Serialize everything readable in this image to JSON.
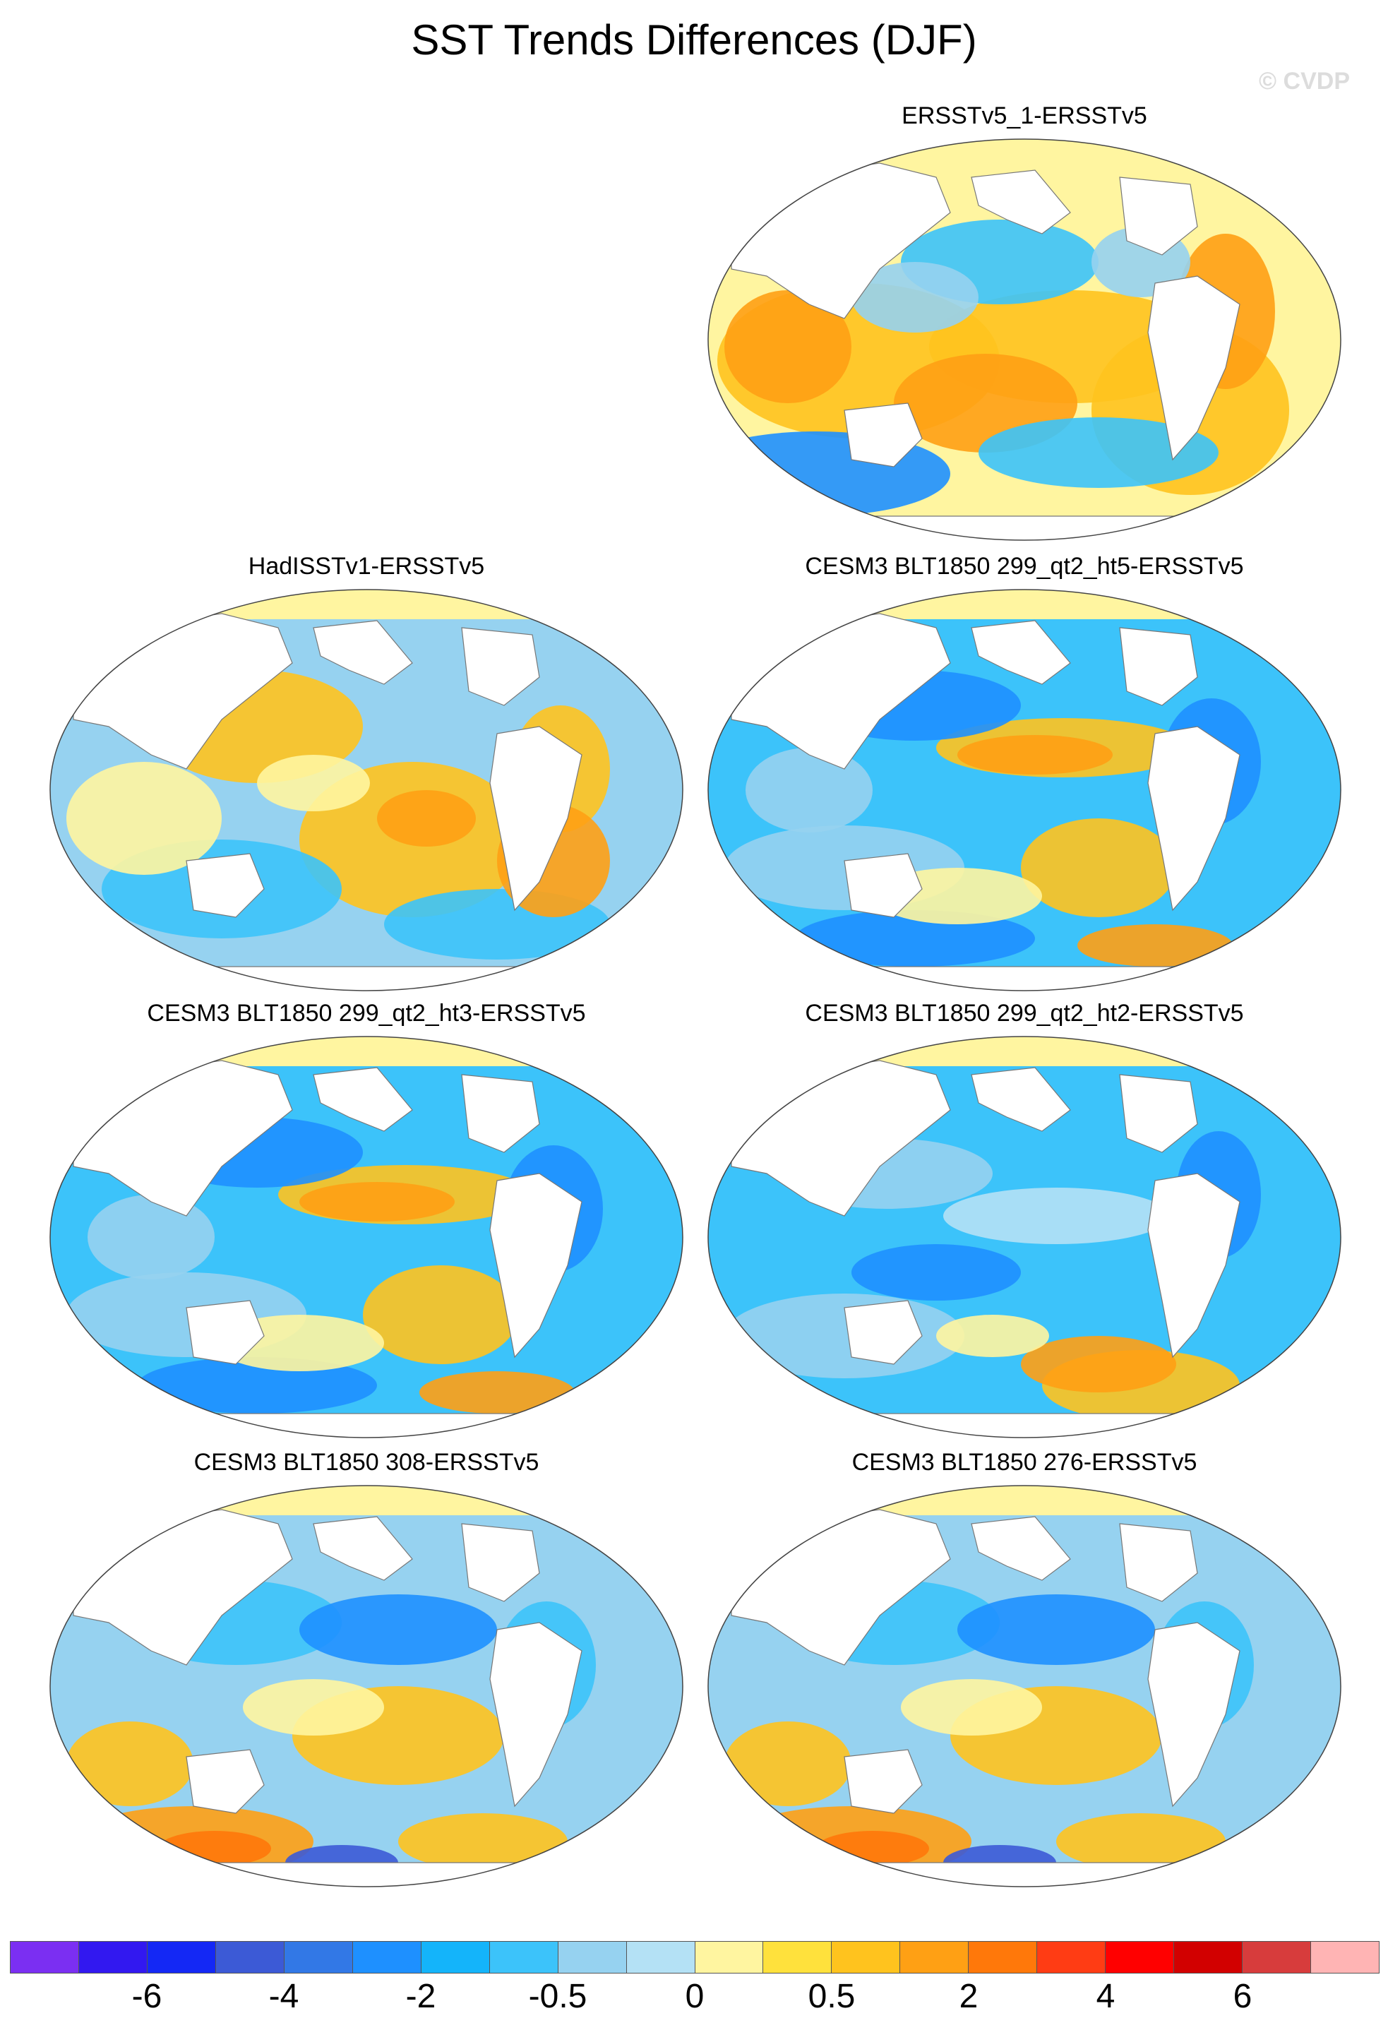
{
  "title": "SST Trends Differences (DJF)",
  "credit": "© CVDP",
  "panels": [
    {
      "title": "ERSSTv5_1-ERSSTv5",
      "pattern": "warm"
    },
    {
      "title": "HadISSTv1-ERSSTv5",
      "pattern": "mixed-warm"
    },
    {
      "title": "CESM3 BLT1850 299_qt2_ht5-ERSSTv5",
      "pattern": "cool-eq-warm"
    },
    {
      "title": "CESM3 BLT1850 299_qt2_ht3-ERSSTv5",
      "pattern": "cool-eq-warm"
    },
    {
      "title": "CESM3 BLT1850 299_qt2_ht2-ERSSTv5",
      "pattern": "cool"
    },
    {
      "title": "CESM3 BLT1850 308-ERSSTv5",
      "pattern": "cool-south-warm"
    },
    {
      "title": "CESM3 BLT1850 276-ERSSTv5",
      "pattern": "cool-south-warm"
    }
  ],
  "colorbar": {
    "colors": [
      "#7b2ff2",
      "#3218f0",
      "#1428f5",
      "#3c5ad6",
      "#3278e6",
      "#1e90ff",
      "#14b4fa",
      "#3cc3fa",
      "#96d2f0",
      "#b4e1f5",
      "#fff5a0",
      "#ffe13c",
      "#ffc31e",
      "#ffa014",
      "#ff780a",
      "#ff3c14",
      "#ff0000",
      "#d20000",
      "#d73c3c",
      "#ffb4b4"
    ],
    "labels": [
      "-6",
      "-4",
      "-2",
      "-0.5",
      "0",
      "0.5",
      "2",
      "4",
      "6"
    ]
  }
}
